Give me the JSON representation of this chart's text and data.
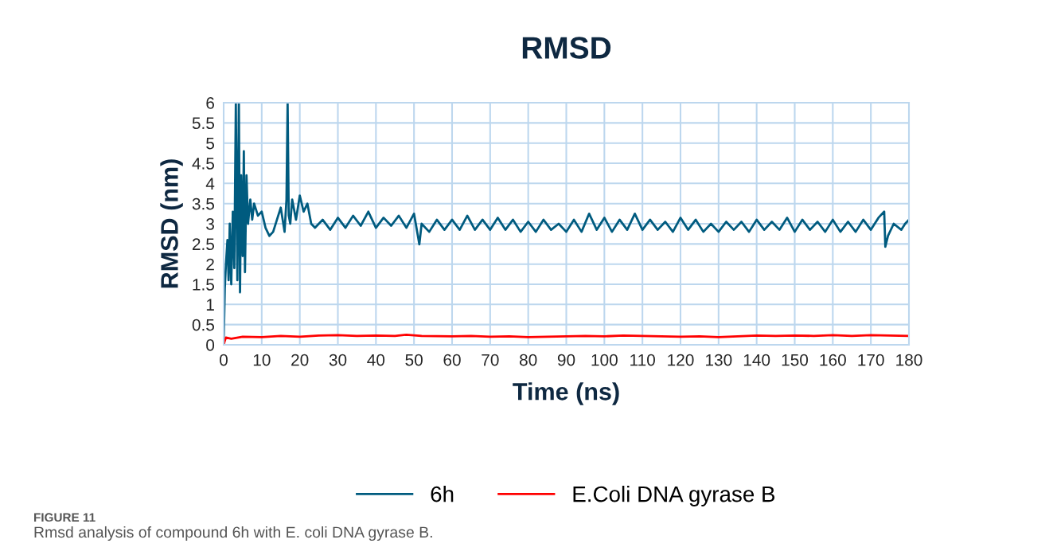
{
  "chart_data": {
    "type": "line",
    "title": "RMSD",
    "xlabel": "Time (ns)",
    "ylabel": "RMSD (nm)",
    "xlim": [
      0,
      180
    ],
    "xticks": [
      0,
      10,
      20,
      30,
      40,
      50,
      60,
      70,
      80,
      90,
      100,
      110,
      120,
      130,
      140,
      150,
      160,
      170,
      180
    ],
    "ylim": [
      0,
      6
    ],
    "yticks": [
      0,
      0.5,
      1,
      1.5,
      2,
      2.5,
      3,
      3.5,
      4,
      4.5,
      5,
      5.5,
      6
    ],
    "grid": true,
    "legend": "bottom",
    "marker": "none",
    "line_style": "solid",
    "series": [
      {
        "name": "6h",
        "color": "#005b7f",
        "x": [
          0,
          0.3,
          0.6,
          1.0,
          1.3,
          1.6,
          2.0,
          2.4,
          2.8,
          3.2,
          3.6,
          4.0,
          4.3,
          4.6,
          5.0,
          5.3,
          5.6,
          6.0,
          6.4,
          7,
          7.5,
          8,
          9,
          10,
          11,
          12,
          13,
          14,
          15,
          16,
          16.5,
          16.8,
          17.1,
          17.5,
          18,
          19,
          20,
          21,
          22,
          23,
          24,
          26,
          28,
          30,
          32,
          34,
          36,
          38,
          40,
          42,
          44,
          46,
          48,
          50,
          51.4,
          52,
          54,
          56,
          58,
          60,
          62,
          64,
          66,
          68,
          70,
          72,
          74,
          76,
          78,
          80,
          82,
          84,
          86,
          88,
          90,
          92,
          94,
          96,
          98,
          100,
          102,
          104,
          106,
          108,
          110,
          112,
          114,
          116,
          118,
          120,
          122,
          124,
          126,
          128,
          130,
          132,
          134,
          136,
          138,
          140,
          142,
          144,
          146,
          148,
          150,
          152,
          154,
          156,
          158,
          160,
          162,
          164,
          166,
          168,
          170,
          172,
          173.5,
          173.8,
          174.5,
          176,
          178,
          179,
          180
        ],
        "values": [
          0,
          1.4,
          2.0,
          2.6,
          1.6,
          3.0,
          1.5,
          3.3,
          1.9,
          6.0,
          1.6,
          6.0,
          1.3,
          4.2,
          2.2,
          4.8,
          1.8,
          4.2,
          3.0,
          3.6,
          3.1,
          3.5,
          3.2,
          3.3,
          2.9,
          2.7,
          2.8,
          3.1,
          3.4,
          2.8,
          3.6,
          6.0,
          3.2,
          3.0,
          3.6,
          3.1,
          3.7,
          3.3,
          3.5,
          3.0,
          2.9,
          3.1,
          2.85,
          3.15,
          2.9,
          3.2,
          2.95,
          3.3,
          2.9,
          3.15,
          2.95,
          3.2,
          2.9,
          3.25,
          2.49,
          3.0,
          2.8,
          3.1,
          2.85,
          3.1,
          2.85,
          3.2,
          2.85,
          3.1,
          2.85,
          3.15,
          2.85,
          3.1,
          2.8,
          3.05,
          2.8,
          3.1,
          2.85,
          3.0,
          2.8,
          3.1,
          2.8,
          3.25,
          2.85,
          3.15,
          2.8,
          3.1,
          2.85,
          3.25,
          2.85,
          3.1,
          2.85,
          3.05,
          2.8,
          3.15,
          2.85,
          3.1,
          2.8,
          3.0,
          2.8,
          3.05,
          2.85,
          3.05,
          2.8,
          3.1,
          2.85,
          3.05,
          2.85,
          3.15,
          2.8,
          3.1,
          2.85,
          3.05,
          2.8,
          3.1,
          2.8,
          3.05,
          2.8,
          3.1,
          2.85,
          3.15,
          3.3,
          2.43,
          2.7,
          3.0,
          2.85,
          3.0,
          3.1
        ]
      },
      {
        "name": "E.Coli DNA gyrase B",
        "color": "#ff0000",
        "x": [
          0,
          0.3,
          0.6,
          2,
          5,
          10,
          15,
          20,
          25,
          30,
          35,
          40,
          45,
          48,
          52,
          60,
          65,
          70,
          75,
          80,
          85,
          90,
          95,
          100,
          105,
          110,
          115,
          120,
          125,
          130,
          135,
          140,
          145,
          150,
          155,
          160,
          165,
          170,
          175,
          180
        ],
        "values": [
          0,
          0.1,
          0.18,
          0.15,
          0.2,
          0.19,
          0.22,
          0.2,
          0.23,
          0.24,
          0.22,
          0.23,
          0.22,
          0.25,
          0.22,
          0.21,
          0.22,
          0.2,
          0.21,
          0.19,
          0.2,
          0.21,
          0.22,
          0.21,
          0.23,
          0.22,
          0.21,
          0.2,
          0.21,
          0.19,
          0.21,
          0.23,
          0.22,
          0.23,
          0.22,
          0.24,
          0.22,
          0.24,
          0.23,
          0.22
        ]
      }
    ],
    "annotations": [
      "FIGURE 11",
      "Rmsd analysis of compound 6h with E. coli DNA gyrase B."
    ]
  }
}
